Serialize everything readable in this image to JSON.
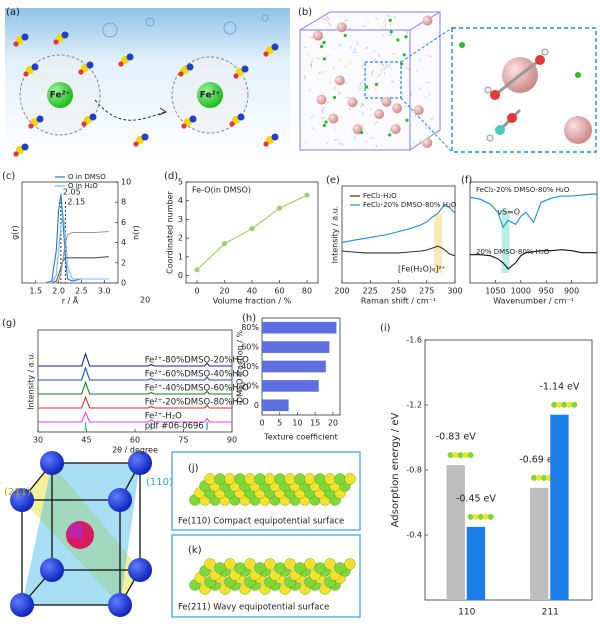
{
  "panel_labels": [
    "(a)",
    "(b)",
    "(c)",
    "(d)",
    "(e)",
    "(f)",
    "(g)",
    "(h)",
    "(i)",
    "(j)",
    "(k)"
  ],
  "illustration_a": {
    "ion_labels": [
      "Fe²⁺",
      "Fe²⁺"
    ]
  },
  "illustration_crystal": {
    "planes": [
      "(211)",
      "(110)"
    ],
    "captions": [
      "Fe(110) Compact equipotential surface",
      "Fe(211) Wavy equipotential surface"
    ]
  },
  "chart_data": [
    {
      "type": "line",
      "xlabel": "r / Å",
      "ylabel": "g(r)",
      "y2label": "n(r)",
      "x": [
        1.5,
        1.7,
        1.85,
        1.95,
        2.0,
        2.05,
        2.1,
        2.15,
        2.2,
        2.3,
        2.5,
        2.8,
        3.1
      ],
      "xlim": [
        1.2,
        3.3
      ],
      "xticks": [
        1.5,
        {
          "value": 2,
          "label": "2.0"
        },
        2.5,
        {
          "value": 3,
          "label": "3.0"
        }
      ],
      "ylim": [
        0,
        25
      ],
      "y2lim": [
        0,
        10
      ],
      "y2ticks": [
        0,
        2,
        4,
        6,
        8,
        10
      ],
      "series": [
        {
          "name": "O in DMSO",
          "color": "#1f77d4",
          "values": [
            0,
            0,
            0.5,
            8,
            18,
            22,
            15,
            6,
            1,
            0.5,
            1,
            1,
            1
          ]
        },
        {
          "name": "O in H₂O",
          "color": "#7fb8ec",
          "values": [
            0,
            0,
            0,
            2,
            8,
            14,
            17,
            12,
            4,
            1,
            1,
            1,
            1
          ]
        },
        {
          "color": "#555555",
          "axis": "y2",
          "values": [
            0,
            0,
            0,
            0.2,
            0.8,
            1.5,
            2.2,
            2.5,
            2.5,
            2.5,
            2.5,
            2.5,
            2.6
          ]
        },
        {
          "color": "#999999",
          "axis": "y2",
          "values": [
            0,
            0,
            0,
            0,
            0.2,
            1,
            2.5,
            4,
            4.8,
            5,
            5,
            5,
            5.1
          ]
        }
      ],
      "annotations": [
        {
          "text": "2.05",
          "x": 2.05
        },
        {
          "text": "2.15",
          "x": 2.15
        }
      ],
      "note": "20"
    },
    {
      "type": "line",
      "title": "Fe-O(in DMSO)",
      "xlabel": "Volume fraction / %",
      "ylabel": "Coordinated number",
      "x": [
        0,
        20,
        40,
        60,
        80
      ],
      "xlim": [
        -8,
        88
      ],
      "xticks": [
        0,
        20,
        40,
        60,
        80
      ],
      "ylim": [
        -0.4,
        5
      ],
      "yticks": [
        0,
        1,
        2,
        3,
        4,
        5
      ],
      "markers": true,
      "series": [
        {
          "color": "#9ccc65",
          "values": [
            0.3,
            1.7,
            2.5,
            3.6,
            4.3
          ]
        }
      ]
    },
    {
      "type": "line",
      "xlabel": "Raman shift / cm⁻¹",
      "ylabel": "Intensity / a.u.",
      "x": [
        200,
        210,
        220,
        230,
        240,
        250,
        260,
        270,
        275,
        280,
        285,
        290,
        295,
        300
      ],
      "xlim": [
        200,
        300
      ],
      "xticks": [
        200,
        225,
        250,
        275,
        300
      ],
      "ylim": [
        0,
        1
      ],
      "series": [
        {
          "name": "FeCl₂-H₂O",
          "color": "#333333",
          "values": [
            0.33,
            0.32,
            0.31,
            0.31,
            0.31,
            0.31,
            0.32,
            0.33,
            0.34,
            0.36,
            0.38,
            0.35,
            0.3,
            0.28
          ]
        },
        {
          "name": "FeCl₂-20% DMSO-80% H₂O",
          "color": "#1f8fd4",
          "values": [
            0.42,
            0.44,
            0.46,
            0.48,
            0.5,
            0.53,
            0.56,
            0.6,
            0.63,
            0.68,
            0.72,
            0.8,
            0.78,
            0.72
          ]
        }
      ],
      "annotations": [
        {
          "text": "[Fe(H₂O)₆]²⁺",
          "x": 285
        }
      ]
    },
    {
      "type": "line",
      "xlabel": "Wavenumber / cm⁻¹",
      "x": [
        1100,
        1080,
        1060,
        1045,
        1035,
        1025,
        1010,
        1000,
        990,
        975,
        960,
        940,
        920,
        900,
        880,
        860,
        850
      ],
      "xlim": [
        1100,
        850
      ],
      "xticks": [
        1050,
        1000,
        950,
        900
      ],
      "ylim": [
        0,
        1
      ],
      "series": [
        {
          "name": "FeCl₂-20% DMSO-80% H₂O",
          "color": "#1f8fd4",
          "values": [
            0.85,
            0.83,
            0.78,
            0.7,
            0.55,
            0.62,
            0.58,
            0.66,
            0.7,
            0.6,
            0.8,
            0.84,
            0.86,
            0.86,
            0.87,
            0.88,
            0.88
          ]
        },
        {
          "name": "20% DMSO-80% H₂O",
          "color": "#111111",
          "values": [
            0.28,
            0.28,
            0.27,
            0.24,
            0.2,
            0.14,
            0.2,
            0.27,
            0.3,
            0.31,
            0.32,
            0.32,
            0.33,
            0.32,
            0.3,
            0.3,
            0.3
          ]
        }
      ],
      "annotations": [
        {
          "text": "νS=O",
          "x": 1030
        }
      ]
    },
    {
      "type": "line",
      "xlabel": "2θ / degree",
      "ylabel": "Intensity / a.u.",
      "x": [
        30,
        43.5,
        44.7,
        46,
        64,
        65,
        66,
        81.5,
        82.3,
        83,
        90
      ],
      "xlim": [
        30,
        90
      ],
      "xticks": [
        30,
        45,
        60,
        75,
        90
      ],
      "ylim": [
        0,
        15
      ],
      "series": [
        {
          "name": "Fe²⁺-80%DMSO-20%H₂O",
          "color": "#1a237e",
          "values": [
            0,
            0,
            1.8,
            0,
            0,
            0.2,
            0,
            0,
            0.4,
            0,
            0
          ]
        },
        {
          "name": "Fe²⁺-60%DMSO-40%H₂O",
          "color": "#1e4fc2",
          "values": [
            0,
            0,
            1.8,
            0,
            0,
            0.2,
            0,
            0,
            0.4,
            0,
            0
          ]
        },
        {
          "name": "Fe²⁺-40%DMSO-60%H₂O",
          "color": "#1b7a1b",
          "values": [
            0,
            0,
            1.7,
            0,
            0,
            0.2,
            0,
            0,
            0.4,
            0,
            0
          ]
        },
        {
          "name": "Fe²⁺-20%DMSO-80%H₂O",
          "color": "#d32f2f",
          "values": [
            0,
            0,
            1.6,
            0,
            0,
            0.2,
            0,
            0,
            0.4,
            0,
            0
          ]
        },
        {
          "name": "Fe²⁺-H₂O",
          "color": "#e040fb",
          "values": [
            0,
            0,
            1.4,
            0,
            0,
            0.3,
            0,
            0,
            0.5,
            0,
            0
          ]
        }
      ],
      "reference": {
        "name": "pdf #06-0696",
        "color": "#4db6ac",
        "peaks": [
          44.7,
          65,
          82.3
        ]
      }
    },
    {
      "type": "bar",
      "orientation": "horizontal",
      "xlabel": "Texture coefficient",
      "ylabel": "DMSO fraction / %",
      "categories": [
        "0",
        "20%",
        "40%",
        "60%",
        "80%"
      ],
      "xlim": [
        0,
        22
      ],
      "xticks": [
        0,
        5,
        10,
        15,
        20
      ],
      "series": [
        {
          "color": "#5c6ee0",
          "values": [
            7.5,
            16,
            18,
            19,
            21
          ]
        }
      ]
    },
    {
      "type": "bar",
      "ylabel": "Adsorption energy / eV",
      "categories": [
        "110",
        "211"
      ],
      "ylim": [
        0,
        -1.6
      ],
      "yticks": [
        -1.6,
        -1.2,
        -0.8,
        -0.4
      ],
      "series": [
        {
          "color": "#bdbdbd",
          "values": [
            -0.83,
            -0.69
          ],
          "value_labels": [
            "-0.83 eV",
            "-0.69 eV"
          ]
        },
        {
          "color": "#1a7fe8",
          "values": [
            -0.45,
            -1.14
          ],
          "value_labels": [
            "-0.45 eV",
            "-1.14 eV"
          ]
        }
      ]
    }
  ]
}
